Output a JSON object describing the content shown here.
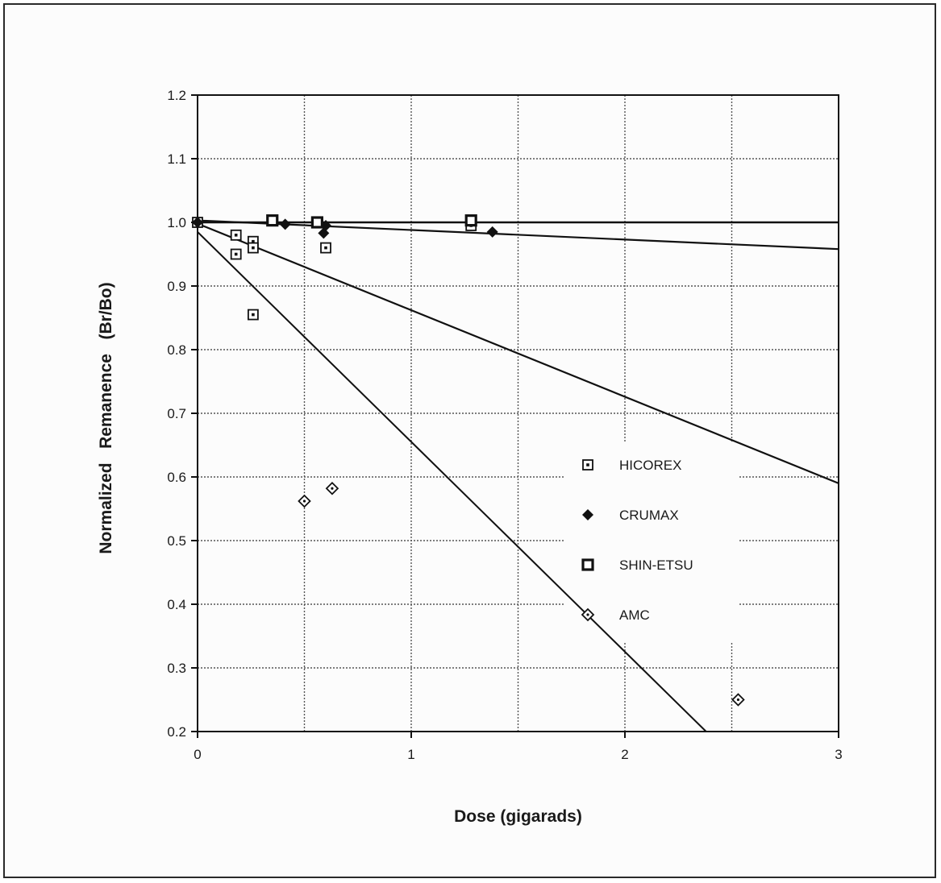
{
  "chart_data": {
    "type": "scatter",
    "title": "",
    "xlabel": "Dose (gigarads)",
    "ylabel": "Normalized   Remanence   (Br/Bo)",
    "xlim": [
      0,
      3
    ],
    "ylim": [
      0.2,
      1.2
    ],
    "x_ticks": [
      "0",
      "1",
      "2",
      "3"
    ],
    "y_ticks": [
      "0.2",
      "0.3",
      "0.4",
      "0.5",
      "0.6",
      "0.7",
      "0.8",
      "0.9",
      "1.0",
      "1.1",
      "1.2"
    ],
    "grid": true,
    "legend_position": "lower-right",
    "series": [
      {
        "name": "HICOREX",
        "marker": "square-dot",
        "points": [
          [
            0.0,
            1.0
          ],
          [
            0.18,
            0.98
          ],
          [
            0.18,
            0.95
          ],
          [
            0.26,
            0.97
          ],
          [
            0.26,
            0.96
          ],
          [
            0.26,
            0.855
          ],
          [
            0.6,
            0.96
          ],
          [
            1.28,
            0.995
          ]
        ]
      },
      {
        "name": "CRUMAX",
        "marker": "filled-diamond",
        "points": [
          [
            0.0,
            1.0
          ],
          [
            0.41,
            0.997
          ],
          [
            0.59,
            0.983
          ],
          [
            0.6,
            0.995
          ],
          [
            1.38,
            0.985
          ]
        ]
      },
      {
        "name": "SHIN-ETSU",
        "marker": "square-bold",
        "points": [
          [
            0.35,
            1.003
          ],
          [
            0.56,
            1.0
          ],
          [
            1.28,
            1.003
          ]
        ]
      },
      {
        "name": "AMC",
        "marker": "open-diamond",
        "points": [
          [
            0.5,
            0.562
          ],
          [
            0.63,
            0.582
          ],
          [
            2.53,
            0.25
          ]
        ]
      }
    ],
    "fit_lines": [
      {
        "x": [
          0,
          3
        ],
        "y": [
          1.0,
          1.0
        ]
      },
      {
        "x": [
          0,
          3
        ],
        "y": [
          1.003,
          0.958
        ]
      },
      {
        "x": [
          0,
          3
        ],
        "y": [
          0.998,
          0.59
        ]
      },
      {
        "x": [
          0,
          2.38
        ],
        "y": [
          0.985,
          0.2
        ]
      }
    ]
  }
}
